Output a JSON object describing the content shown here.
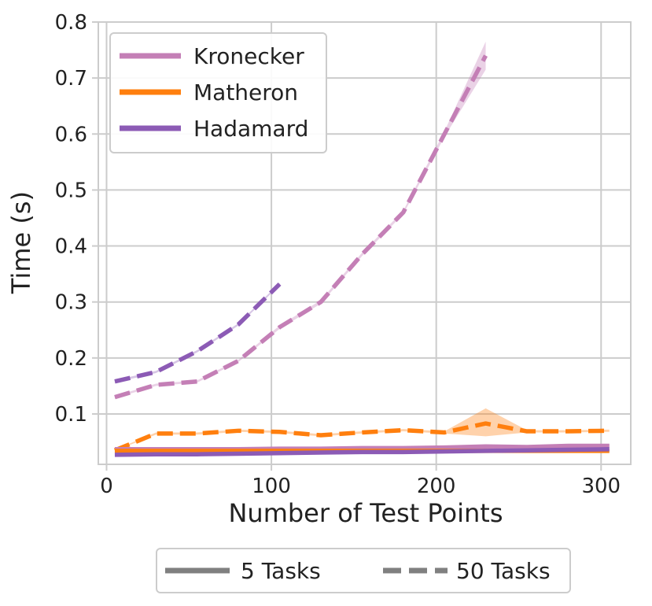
{
  "chart_data": {
    "type": "line",
    "xlabel": "Number of Test Points",
    "ylabel": "Time (s)",
    "xlim": [
      -5,
      318
    ],
    "ylim": [
      0.01,
      0.8
    ],
    "xticks": [
      0,
      100,
      200,
      300
    ],
    "yticks": [
      0.1,
      0.2,
      0.3,
      0.4,
      0.5,
      0.6,
      0.7,
      0.8
    ],
    "grid": true,
    "legend_methods": {
      "placement": "top-left",
      "entries": [
        {
          "name": "Kronecker",
          "color": "#c47fb6"
        },
        {
          "name": "Matheron",
          "color": "#ff7f0e"
        },
        {
          "name": "Hadamard",
          "color": "#8c5bb5"
        }
      ]
    },
    "legend_styles": {
      "placement": "bottom-center",
      "entries": [
        {
          "name": "5 Tasks",
          "style": "solid"
        },
        {
          "name": "50 Tasks",
          "style": "dashed"
        }
      ]
    },
    "series": [
      {
        "method": "Kronecker",
        "tasks": "50 Tasks",
        "style": "dashed",
        "color": "#c47fb6",
        "x": [
          5,
          30,
          55,
          80,
          105,
          130,
          155,
          180,
          205,
          230
        ],
        "y": [
          0.13,
          0.152,
          0.158,
          0.195,
          0.255,
          0.3,
          0.385,
          0.46,
          0.6,
          0.74
        ],
        "band": [
          [
            0.128,
            0.132
          ],
          [
            0.15,
            0.154
          ],
          [
            0.156,
            0.16
          ],
          [
            0.193,
            0.197
          ],
          [
            0.252,
            0.258
          ],
          [
            0.297,
            0.303
          ],
          [
            0.382,
            0.388
          ],
          [
            0.457,
            0.463
          ],
          [
            0.595,
            0.605
          ],
          [
            0.715,
            0.765
          ]
        ]
      },
      {
        "method": "Hadamard",
        "tasks": "50 Tasks",
        "style": "dashed",
        "color": "#8c5bb5",
        "x": [
          5,
          30,
          55,
          80,
          105
        ],
        "y": [
          0.158,
          0.175,
          0.212,
          0.26,
          0.332
        ],
        "band": [
          [
            0.156,
            0.16
          ],
          [
            0.173,
            0.177
          ],
          [
            0.21,
            0.214
          ],
          [
            0.258,
            0.262
          ],
          [
            0.33,
            0.334
          ]
        ]
      },
      {
        "method": "Matheron",
        "tasks": "50 Tasks",
        "style": "dashed",
        "color": "#ff7f0e",
        "x": [
          5,
          30,
          55,
          80,
          105,
          130,
          155,
          180,
          205,
          230,
          255,
          280,
          305
        ],
        "y": [
          0.035,
          0.065,
          0.065,
          0.07,
          0.068,
          0.062,
          0.067,
          0.071,
          0.067,
          0.083,
          0.069,
          0.069,
          0.07
        ],
        "band": [
          [
            0.034,
            0.036
          ],
          [
            0.063,
            0.067
          ],
          [
            0.063,
            0.067
          ],
          [
            0.068,
            0.072
          ],
          [
            0.066,
            0.07
          ],
          [
            0.06,
            0.064
          ],
          [
            0.065,
            0.069
          ],
          [
            0.069,
            0.073
          ],
          [
            0.065,
            0.069
          ],
          [
            0.06,
            0.11
          ],
          [
            0.067,
            0.071
          ],
          [
            0.067,
            0.071
          ],
          [
            0.068,
            0.072
          ]
        ]
      },
      {
        "method": "Kronecker",
        "tasks": "5 Tasks",
        "style": "solid",
        "color": "#c47fb6",
        "x": [
          5,
          30,
          55,
          80,
          105,
          130,
          155,
          180,
          205,
          230,
          255,
          280,
          305
        ],
        "y": [
          0.037,
          0.037,
          0.037,
          0.037,
          0.038,
          0.038,
          0.039,
          0.039,
          0.04,
          0.042,
          0.041,
          0.043,
          0.043
        ],
        "band": [
          [
            0.036,
            0.038
          ],
          [
            0.036,
            0.038
          ],
          [
            0.036,
            0.038
          ],
          [
            0.036,
            0.038
          ],
          [
            0.037,
            0.039
          ],
          [
            0.037,
            0.039
          ],
          [
            0.038,
            0.04
          ],
          [
            0.038,
            0.04
          ],
          [
            0.039,
            0.041
          ],
          [
            0.041,
            0.043
          ],
          [
            0.04,
            0.042
          ],
          [
            0.042,
            0.044
          ],
          [
            0.042,
            0.044
          ]
        ]
      },
      {
        "method": "Matheron",
        "tasks": "5 Tasks",
        "style": "solid",
        "color": "#ff7f0e",
        "x": [
          5,
          30,
          55,
          80,
          105,
          130,
          155,
          180,
          205,
          230,
          255,
          280,
          305
        ],
        "y": [
          0.034,
          0.034,
          0.034,
          0.034,
          0.034,
          0.034,
          0.034,
          0.034,
          0.034,
          0.034,
          0.034,
          0.034,
          0.034
        ],
        "band": [
          [
            0.033,
            0.035
          ],
          [
            0.033,
            0.035
          ],
          [
            0.033,
            0.035
          ],
          [
            0.033,
            0.035
          ],
          [
            0.033,
            0.035
          ],
          [
            0.033,
            0.035
          ],
          [
            0.033,
            0.035
          ],
          [
            0.033,
            0.035
          ],
          [
            0.033,
            0.035
          ],
          [
            0.033,
            0.035
          ],
          [
            0.033,
            0.035
          ],
          [
            0.033,
            0.035
          ],
          [
            0.033,
            0.035
          ]
        ]
      },
      {
        "method": "Hadamard",
        "tasks": "5 Tasks",
        "style": "solid",
        "color": "#8c5bb5",
        "x": [
          5,
          30,
          55,
          80,
          105,
          130,
          155,
          180,
          205,
          230,
          255,
          280,
          305
        ],
        "y": [
          0.027,
          0.028,
          0.028,
          0.029,
          0.03,
          0.031,
          0.032,
          0.032,
          0.033,
          0.034,
          0.035,
          0.036,
          0.037
        ],
        "band": [
          [
            0.026,
            0.028
          ],
          [
            0.027,
            0.029
          ],
          [
            0.027,
            0.029
          ],
          [
            0.028,
            0.03
          ],
          [
            0.029,
            0.031
          ],
          [
            0.03,
            0.032
          ],
          [
            0.031,
            0.033
          ],
          [
            0.031,
            0.033
          ],
          [
            0.032,
            0.034
          ],
          [
            0.033,
            0.035
          ],
          [
            0.034,
            0.036
          ],
          [
            0.035,
            0.037
          ],
          [
            0.036,
            0.038
          ]
        ]
      }
    ]
  }
}
